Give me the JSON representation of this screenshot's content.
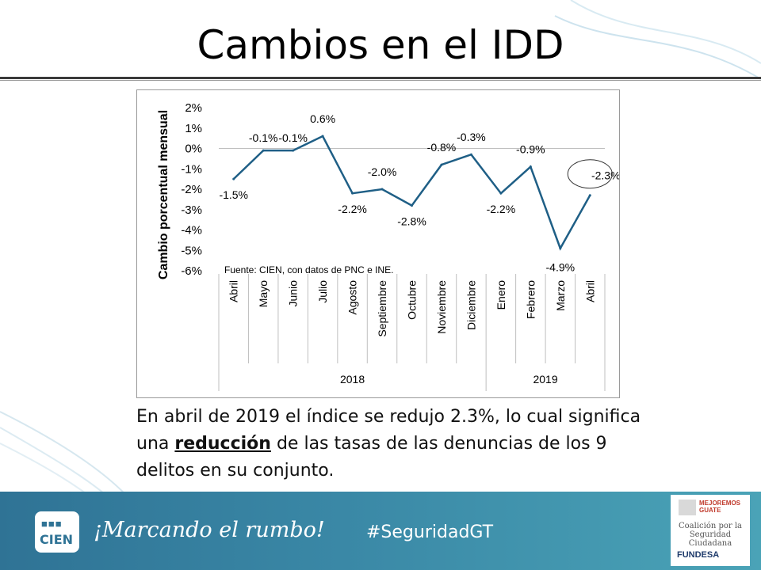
{
  "slide": {
    "title": "Cambios en el IDD",
    "body_part1": "En abril de 2019 el índice se redujo 2.3%, lo cual significa una ",
    "body_emph": "reducción",
    "body_part2": " de las tasas de las denuncias de los 9 delitos en su conjunto."
  },
  "footer": {
    "logo_text": "CIEN",
    "logo_dots": "■■■",
    "slogan": "¡Marcando el rumbo!",
    "hashtag": "#SeguridadGT",
    "partner_top": "MEJOREMOS GUATE",
    "partner_mid": "Coalición por la Seguridad Ciudadana",
    "partner_bottom": "FUNDESA"
  },
  "chart_data": {
    "type": "line",
    "ylabel": "Cambio porcentual mensual",
    "source": "Fuente: CIEN, con datos de PNC e INE.",
    "ylim": [
      -6,
      2
    ],
    "yticks": [
      "2%",
      "1%",
      "0%",
      "-1%",
      "-2%",
      "-3%",
      "-4%",
      "-5%",
      "-6%"
    ],
    "categories": [
      "Abril",
      "Mayo",
      "Junio",
      "Julio",
      "Agosto",
      "Septiembre",
      "Octubre",
      "Noviembre",
      "Diciembre",
      "Enero",
      "Febrero",
      "Marzo",
      "Abril"
    ],
    "values": [
      -1.5,
      -0.1,
      -0.1,
      0.6,
      -2.2,
      -2.0,
      -2.8,
      -0.8,
      -0.3,
      -2.2,
      -0.9,
      -4.9,
      -2.3
    ],
    "data_labels": [
      "-1.5%",
      "-0.1%",
      "-0.1%",
      "0.6%",
      "-2.2%",
      "-2.0%",
      "-2.8%",
      "-0.8%",
      "-0.3%",
      "-2.2%",
      "-0.9%",
      "-4.9%",
      "-2.3%"
    ],
    "years": [
      "2018",
      "2019"
    ],
    "line_color": "#1f5f86"
  }
}
